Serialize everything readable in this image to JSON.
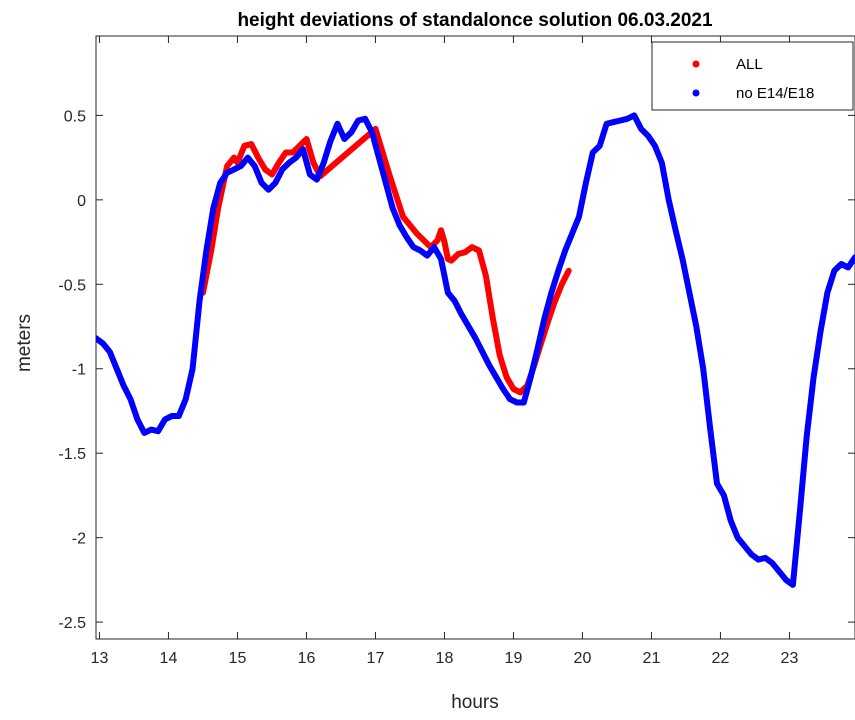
{
  "chart_data": {
    "type": "line",
    "title": "height deviations of standalonce solution 06.03.2021",
    "xlabel": "hours",
    "ylabel": "meters",
    "xlim": [
      12.95,
      23.95
    ],
    "ylim": [
      -2.6,
      0.97
    ],
    "xticks": [
      13,
      14,
      15,
      16,
      17,
      18,
      19,
      20,
      21,
      22,
      23
    ],
    "yticks": [
      0.5,
      0,
      -0.5,
      -1,
      -1.5,
      -2,
      -2.5
    ],
    "ytick_labels": [
      "0.5",
      "0",
      "-0.5",
      "-1",
      "-1.5",
      "-2",
      "-2.5"
    ],
    "legend_position": "top-right",
    "grid": false,
    "series": [
      {
        "name": "ALL",
        "color": "#ff0000",
        "x": [
          14.5,
          14.62,
          14.72,
          14.85,
          14.95,
          15.0,
          15.1,
          15.2,
          15.3,
          15.4,
          15.5,
          15.6,
          15.7,
          15.8,
          15.9,
          16.0,
          16.1,
          16.2,
          17.0,
          17.2,
          17.4,
          17.6,
          17.8,
          17.9,
          17.95,
          18.0,
          18.05,
          18.1,
          18.2,
          18.3,
          18.4,
          18.5,
          18.6,
          18.7,
          18.8,
          18.9,
          19.0,
          19.1,
          19.2,
          19.3,
          19.4,
          19.5,
          19.6,
          19.7,
          19.8
        ],
        "y": [
          -0.55,
          -0.3,
          -0.05,
          0.2,
          0.25,
          0.22,
          0.32,
          0.33,
          0.25,
          0.18,
          0.15,
          0.22,
          0.28,
          0.28,
          0.32,
          0.36,
          0.22,
          0.14,
          0.42,
          0.15,
          -0.1,
          -0.2,
          -0.28,
          -0.24,
          -0.18,
          -0.25,
          -0.35,
          -0.36,
          -0.32,
          -0.31,
          -0.28,
          -0.3,
          -0.45,
          -0.7,
          -0.92,
          -1.05,
          -1.12,
          -1.14,
          -1.1,
          -0.98,
          -0.85,
          -0.72,
          -0.6,
          -0.5,
          -0.42
        ]
      },
      {
        "name": "no E14/E18",
        "color": "#0000ff",
        "x": [
          12.95,
          13.05,
          13.15,
          13.25,
          13.35,
          13.45,
          13.55,
          13.65,
          13.75,
          13.85,
          13.95,
          14.05,
          14.15,
          14.25,
          14.35,
          14.45,
          14.55,
          14.65,
          14.75,
          14.85,
          14.95,
          15.05,
          15.15,
          15.25,
          15.35,
          15.45,
          15.55,
          15.65,
          15.75,
          15.85,
          15.95,
          16.05,
          16.15,
          16.25,
          16.35,
          16.45,
          16.55,
          16.65,
          16.75,
          16.85,
          16.95,
          17.05,
          17.15,
          17.25,
          17.35,
          17.45,
          17.55,
          17.65,
          17.75,
          17.85,
          17.95,
          18.05,
          18.15,
          18.25,
          18.35,
          18.45,
          18.55,
          18.65,
          18.75,
          18.85,
          18.95,
          19.05,
          19.15,
          19.25,
          19.35,
          19.45,
          19.55,
          19.65,
          19.75,
          19.85,
          19.95,
          20.05,
          20.15,
          20.25,
          20.35,
          20.45,
          20.55,
          20.65,
          20.75,
          20.85,
          20.95,
          21.05,
          21.15,
          21.25,
          21.35,
          21.45,
          21.55,
          21.65,
          21.75,
          21.85,
          21.95,
          22.05,
          22.15,
          22.25,
          22.35,
          22.45,
          22.55,
          22.65,
          22.75,
          22.85,
          22.95,
          23.05,
          23.15,
          23.25,
          23.35,
          23.45,
          23.55,
          23.65,
          23.75,
          23.85,
          23.95
        ],
        "y": [
          -0.82,
          -0.85,
          -0.9,
          -1.0,
          -1.1,
          -1.18,
          -1.3,
          -1.38,
          -1.36,
          -1.37,
          -1.3,
          -1.28,
          -1.28,
          -1.18,
          -1.0,
          -0.6,
          -0.3,
          -0.05,
          0.1,
          0.16,
          0.18,
          0.2,
          0.25,
          0.2,
          0.1,
          0.06,
          0.1,
          0.18,
          0.22,
          0.25,
          0.3,
          0.15,
          0.12,
          0.22,
          0.35,
          0.45,
          0.36,
          0.4,
          0.47,
          0.48,
          0.4,
          0.25,
          0.1,
          -0.05,
          -0.15,
          -0.22,
          -0.28,
          -0.3,
          -0.33,
          -0.28,
          -0.35,
          -0.55,
          -0.6,
          -0.68,
          -0.75,
          -0.82,
          -0.9,
          -0.98,
          -1.05,
          -1.12,
          -1.18,
          -1.2,
          -1.2,
          -1.05,
          -0.88,
          -0.7,
          -0.55,
          -0.42,
          -0.3,
          -0.2,
          -0.1,
          0.1,
          0.28,
          0.32,
          0.45,
          0.46,
          0.47,
          0.48,
          0.5,
          0.42,
          0.38,
          0.32,
          0.22,
          0.0,
          -0.18,
          -0.35,
          -0.55,
          -0.75,
          -1.0,
          -1.35,
          -1.68,
          -1.75,
          -1.9,
          -2.0,
          -2.05,
          -2.1,
          -2.13,
          -2.12,
          -2.15,
          -2.2,
          -2.25,
          -2.28,
          -1.85,
          -1.4,
          -1.05,
          -0.78,
          -0.55,
          -0.42,
          -0.38,
          -0.4,
          -0.34
        ]
      }
    ]
  }
}
